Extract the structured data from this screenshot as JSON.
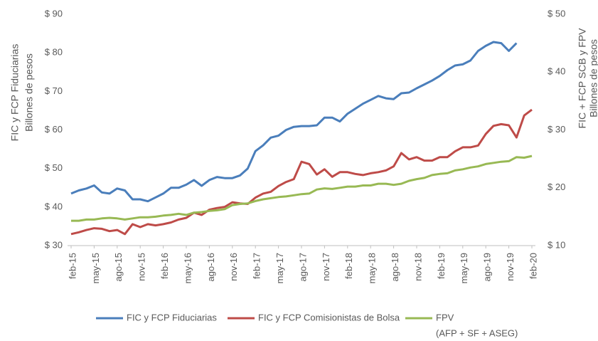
{
  "chart_data": {
    "type": "line",
    "ylabel": [
      "FIC y FCP Fiduciarias",
      "Billones de pesos"
    ],
    "y2label": [
      "FIC + FCP SCB y FPV",
      "Billones de pesos"
    ],
    "categories": [
      "feb-15",
      null,
      null,
      "may-15",
      null,
      null,
      "ago-15",
      null,
      null,
      "nov-15",
      null,
      null,
      "feb-16",
      null,
      null,
      "may-16",
      null,
      null,
      "ago-16",
      null,
      null,
      "nov-16",
      null,
      null,
      "feb-17",
      null,
      null,
      "may-17",
      null,
      null,
      "ago-17",
      null,
      null,
      "nov-17",
      null,
      null,
      "feb-18",
      null,
      null,
      "may-18",
      null,
      null,
      "ago-18",
      null,
      null,
      "nov-18",
      null,
      null,
      "feb-19",
      null,
      null,
      "may-19",
      null,
      null,
      "ago-19",
      null,
      null,
      "nov-19",
      null,
      null,
      "feb-20"
    ],
    "ylim": [
      30,
      90
    ],
    "yticks": [
      {
        "value": 30,
        "label": "$ 30"
      },
      {
        "value": 40,
        "label": "$ 40"
      },
      {
        "value": 50,
        "label": "$ 50"
      },
      {
        "value": 60,
        "label": "$ 60"
      },
      {
        "value": 70,
        "label": "$ 70"
      },
      {
        "value": 80,
        "label": "$ 80"
      },
      {
        "value": 90,
        "label": "$ 90"
      }
    ],
    "y2lim": [
      10,
      50
    ],
    "y2ticks": [
      {
        "value": 10,
        "label": "$ 10"
      },
      {
        "value": 20,
        "label": "$ 20"
      },
      {
        "value": 30,
        "label": "$ 30"
      },
      {
        "value": 40,
        "label": "$ 40"
      },
      {
        "value": 50,
        "label": "$ 50"
      }
    ],
    "grid": false,
    "legend": "bottom",
    "series": [
      {
        "name": "FIC y FCP Fiduciarias",
        "color": "#4a7ebb",
        "axis": "y",
        "values": [
          43.5,
          44.3,
          44.8,
          45.6,
          43.8,
          43.5,
          44.8,
          44.3,
          42.0,
          42.0,
          41.5,
          42.5,
          43.5,
          45.0,
          45.0,
          45.8,
          47.0,
          45.5,
          47.0,
          47.8,
          47.5,
          47.5,
          48.2,
          50.0,
          54.5,
          56.0,
          58.0,
          58.5,
          60.0,
          60.8,
          61.0,
          61.0,
          61.2,
          63.2,
          63.2,
          62.2,
          64.2,
          65.5,
          66.8,
          67.8,
          68.8,
          68.2,
          68.0,
          69.5,
          69.7,
          70.8,
          71.8,
          72.8,
          74.0,
          75.5,
          76.7,
          77.0,
          78.0,
          80.5,
          81.8,
          82.8,
          82.5,
          80.5,
          82.5,
          null,
          null
        ]
      },
      {
        "name": "FIC y FCP Comisionistas de Bolsa",
        "color": "#be4b48",
        "axis": "y2",
        "values": [
          12.0,
          12.3,
          12.7,
          13.0,
          12.9,
          12.5,
          12.7,
          12.0,
          13.7,
          13.2,
          13.7,
          13.5,
          13.7,
          14.0,
          14.5,
          14.8,
          15.7,
          15.3,
          16.2,
          16.5,
          16.7,
          17.5,
          17.3,
          17.2,
          18.3,
          19.0,
          19.3,
          20.3,
          21.0,
          21.5,
          24.5,
          24.1,
          22.3,
          23.2,
          21.9,
          22.7,
          22.7,
          22.4,
          22.2,
          22.5,
          22.7,
          23.0,
          23.7,
          26.0,
          24.9,
          25.3,
          24.7,
          24.7,
          25.3,
          25.3,
          26.3,
          27.0,
          27.0,
          27.3,
          29.3,
          30.7,
          31.0,
          30.8,
          28.7,
          32.5,
          33.5
        ]
      },
      {
        "name": "FPV",
        "name_note": "(AFP + SF + ASEG)",
        "color": "#98b954",
        "axis": "y2",
        "values": [
          14.3,
          14.3,
          14.5,
          14.5,
          14.7,
          14.8,
          14.7,
          14.5,
          14.7,
          14.9,
          14.9,
          15.0,
          15.2,
          15.3,
          15.5,
          15.3,
          15.7,
          15.8,
          16.0,
          16.1,
          16.3,
          17.0,
          17.2,
          17.3,
          17.7,
          18.0,
          18.2,
          18.4,
          18.5,
          18.7,
          18.9,
          19.0,
          19.7,
          19.9,
          19.8,
          20.0,
          20.2,
          20.2,
          20.4,
          20.4,
          20.7,
          20.7,
          20.5,
          20.7,
          21.2,
          21.5,
          21.7,
          22.2,
          22.4,
          22.5,
          23.0,
          23.2,
          23.5,
          23.7,
          24.1,
          24.3,
          24.5,
          24.6,
          25.3,
          25.2,
          25.5
        ]
      }
    ]
  }
}
